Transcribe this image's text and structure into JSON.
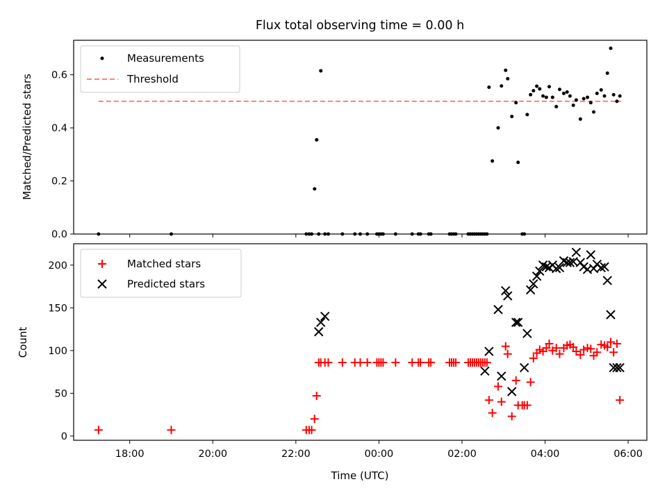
{
  "chart_data": [
    {
      "type": "scatter",
      "title": "Flux total observing time = 0.00 h",
      "xlabel": "",
      "ylabel": "Matched/Predicted stars",
      "ylim": [
        0,
        0.73
      ],
      "yticks": [
        0.0,
        0.2,
        0.4,
        0.6
      ],
      "ytick_labels": [
        "0.0",
        "0.2",
        "0.4",
        "0.6"
      ],
      "grid": false,
      "legend_position": "top-left",
      "threshold": {
        "name": "Threshold",
        "value": 0.5,
        "x_start": -6.75,
        "x_end": 5.83,
        "color": "#ff7f7f"
      },
      "series": [
        {
          "name": "Measurements",
          "color": "#000000",
          "marker": "dot",
          "x": [
            -6.75,
            -5.0,
            -1.75,
            -1.68,
            -1.62,
            -1.55,
            -1.5,
            -1.45,
            -1.4,
            -1.3,
            -1.22,
            -0.88,
            -0.58,
            -0.45,
            -0.28,
            -0.05,
            0.0,
            0.05,
            0.1,
            0.4,
            0.8,
            0.95,
            1.0,
            1.2,
            1.25,
            1.7,
            1.75,
            1.8,
            1.85,
            2.15,
            2.2,
            2.25,
            2.3,
            2.35,
            2.4,
            2.45,
            2.5,
            2.55,
            2.6,
            2.65,
            2.73,
            2.87,
            2.95,
            3.05,
            3.1,
            3.2,
            3.3,
            3.35,
            3.45,
            3.5,
            3.57,
            3.65,
            3.72,
            3.8,
            3.87,
            3.95,
            4.03,
            4.1,
            4.18,
            4.27,
            4.35,
            4.45,
            4.53,
            4.6,
            4.68,
            4.75,
            4.85,
            4.93,
            5.02,
            5.1,
            5.17,
            5.25,
            5.35,
            5.43,
            5.5,
            5.58,
            5.65,
            5.73,
            5.8
          ],
          "y": [
            0.0,
            0.0,
            0.0,
            0.0,
            0.0,
            0.17,
            0.355,
            0.0,
            0.615,
            0.0,
            0.0,
            0.0,
            0.0,
            0.0,
            0.0,
            0.0,
            0.0,
            0.0,
            0.0,
            0.0,
            0.0,
            0.0,
            0.0,
            0.0,
            0.0,
            0.0,
            0.0,
            0.0,
            0.0,
            0.0,
            0.0,
            0.0,
            0.0,
            0.0,
            0.0,
            0.0,
            0.0,
            0.0,
            0.0,
            0.553,
            0.275,
            0.4,
            0.558,
            0.617,
            0.585,
            0.443,
            0.495,
            0.27,
            0.0,
            0.0,
            0.45,
            0.525,
            0.54,
            0.557,
            0.547,
            0.52,
            0.515,
            0.555,
            0.515,
            0.48,
            0.545,
            0.53,
            0.535,
            0.52,
            0.485,
            0.505,
            0.433,
            0.51,
            0.515,
            0.495,
            0.46,
            0.53,
            0.543,
            0.52,
            0.606,
            0.7,
            0.525,
            0.5,
            0.52
          ]
        }
      ]
    },
    {
      "type": "scatter",
      "title": "",
      "xlabel": "Time (UTC)",
      "ylabel": "Count",
      "ylim": [
        -5,
        225
      ],
      "yticks": [
        0,
        50,
        100,
        150,
        200
      ],
      "ytick_labels": [
        "0",
        "50",
        "100",
        "150",
        "200"
      ],
      "grid": false,
      "legend_position": "top-left",
      "series": [
        {
          "name": "Matched stars",
          "color": "#ff0000",
          "marker": "plus",
          "x": [
            -6.75,
            -5.0,
            -1.75,
            -1.68,
            -1.62,
            -1.55,
            -1.5,
            -1.45,
            -1.4,
            -1.3,
            -1.22,
            -0.88,
            -0.58,
            -0.45,
            -0.28,
            -0.05,
            0.0,
            0.05,
            0.1,
            0.4,
            0.8,
            0.95,
            1.0,
            1.2,
            1.25,
            1.7,
            1.75,
            1.8,
            1.85,
            2.15,
            2.2,
            2.25,
            2.3,
            2.35,
            2.4,
            2.45,
            2.5,
            2.55,
            2.6,
            2.65,
            2.73,
            2.87,
            2.95,
            3.05,
            3.1,
            3.2,
            3.3,
            3.35,
            3.45,
            3.5,
            3.57,
            3.65,
            3.72,
            3.8,
            3.87,
            3.95,
            4.03,
            4.1,
            4.18,
            4.27,
            4.35,
            4.45,
            4.53,
            4.6,
            4.68,
            4.75,
            4.85,
            4.93,
            5.02,
            5.1,
            5.17,
            5.25,
            5.35,
            5.43,
            5.5,
            5.58,
            5.65,
            5.73,
            5.8
          ],
          "y": [
            7,
            7,
            7,
            7,
            7,
            20,
            47,
            86,
            86,
            86,
            86,
            86,
            86,
            86,
            86,
            86,
            86,
            86,
            86,
            86,
            86,
            86,
            86,
            86,
            86,
            86,
            86,
            86,
            86,
            86,
            86,
            86,
            86,
            86,
            86,
            86,
            86,
            86,
            86,
            42,
            27,
            58,
            40,
            105,
            96,
            23,
            65,
            36,
            36,
            36,
            36,
            63,
            91,
            97,
            101,
            99,
            103,
            108,
            100,
            103,
            96,
            103,
            106,
            107,
            104,
            99,
            95,
            101,
            103,
            102,
            94,
            98,
            107,
            106,
            104,
            110,
            98,
            108,
            42
          ]
        },
        {
          "name": "Predicted stars",
          "color": "#000000",
          "marker": "x",
          "x": [
            -1.45,
            -1.4,
            -1.3,
            2.55,
            2.65,
            2.87,
            2.95,
            3.05,
            3.1,
            3.2,
            3.3,
            3.35,
            3.5,
            3.57,
            3.65,
            3.72,
            3.8,
            3.87,
            3.95,
            4.03,
            4.1,
            4.18,
            4.27,
            4.35,
            4.45,
            4.53,
            4.6,
            4.68,
            4.75,
            4.85,
            4.93,
            5.02,
            5.1,
            5.17,
            5.25,
            5.35,
            5.43,
            5.5,
            5.58,
            5.65,
            5.73,
            5.8
          ],
          "y": [
            122,
            133,
            140,
            76,
            99,
            148,
            70,
            170,
            164,
            52,
            133,
            133,
            80,
            120,
            171,
            178,
            187,
            193,
            200,
            198,
            197,
            200,
            196,
            197,
            205,
            203,
            203,
            204,
            215,
            203,
            198,
            195,
            212,
            196,
            201,
            197,
            198,
            182,
            142,
            80,
            80,
            80
          ]
        }
      ]
    }
  ],
  "x_axis": {
    "ticks": [
      -6,
      -4,
      -2,
      0,
      2,
      4,
      6
    ],
    "tick_labels": [
      "18:00",
      "20:00",
      "22:00",
      "00:00",
      "02:00",
      "04:00",
      "06:00"
    ],
    "xlim": [
      -7.35,
      6.45
    ]
  },
  "legend": {
    "top": [
      {
        "label": "Measurements",
        "marker": "dot",
        "color": "#000000"
      },
      {
        "label": "Threshold",
        "marker": "dashed-line",
        "color": "#ff7f7f"
      }
    ],
    "bottom": [
      {
        "label": "Matched stars",
        "marker": "plus",
        "color": "#ff0000"
      },
      {
        "label": "Predicted stars",
        "marker": "x",
        "color": "#000000"
      }
    ]
  }
}
